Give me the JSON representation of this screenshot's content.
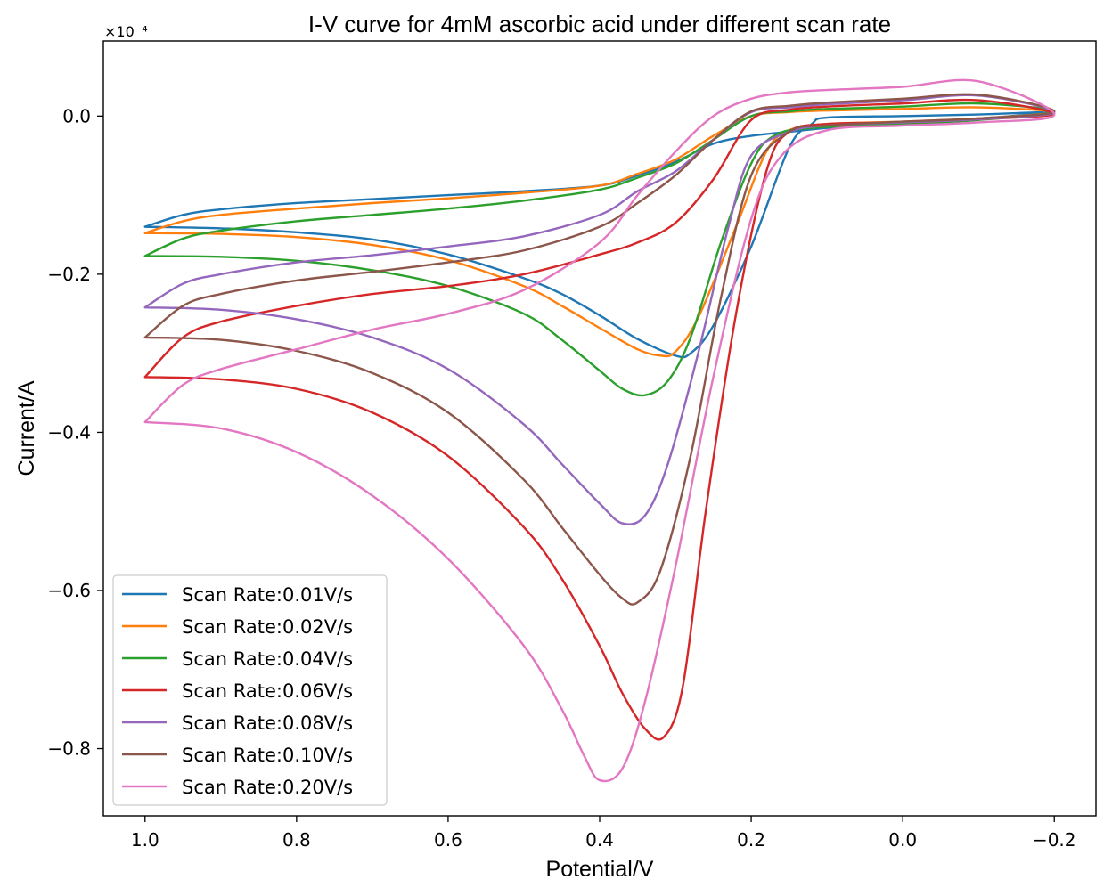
{
  "chart_data": {
    "type": "line",
    "title": "I-V curve for 4mM ascorbic acid under different scan rate",
    "xlabel": "Potential/V",
    "ylabel": "Current/A",
    "y_offset_label": "×10⁻⁴",
    "xlim": [
      1.055,
      -0.255
    ],
    "ylim": [
      -0.885,
      0.095
    ],
    "x_inverted": true,
    "xticks": [
      1.0,
      0.8,
      0.6,
      0.4,
      0.2,
      0.0,
      -0.2
    ],
    "xtick_labels": [
      "1.0",
      "0.8",
      "0.6",
      "0.4",
      "0.2",
      "0.0",
      "−0.2"
    ],
    "yticks": [
      0.0,
      -0.2,
      -0.4,
      -0.6,
      -0.8
    ],
    "ytick_labels": [
      "0.0",
      "−0.2",
      "−0.4",
      "−0.6",
      "−0.8"
    ],
    "grid": false,
    "legend_position": "lower-left",
    "series": [
      {
        "name": "Scan Rate:0.01V/s",
        "color": "#1f77b4",
        "forward": [
          [
            1.0,
            -0.14
          ],
          [
            0.9,
            -0.142
          ],
          [
            0.8,
            -0.147
          ],
          [
            0.7,
            -0.156
          ],
          [
            0.6,
            -0.175
          ],
          [
            0.5,
            -0.205
          ],
          [
            0.45,
            -0.225
          ],
          [
            0.4,
            -0.252
          ],
          [
            0.35,
            -0.282
          ],
          [
            0.3,
            -0.303
          ],
          [
            0.28,
            -0.3
          ],
          [
            0.25,
            -0.265
          ],
          [
            0.2,
            -0.165
          ],
          [
            0.15,
            -0.04
          ],
          [
            0.12,
            -0.01
          ],
          [
            0.1,
            -0.002
          ],
          [
            0.0,
            0.0
          ],
          [
            -0.1,
            0.002
          ],
          [
            -0.2,
            0.005
          ]
        ],
        "reverse": [
          [
            -0.2,
            0.005
          ],
          [
            -0.1,
            -0.003
          ],
          [
            0.0,
            -0.008
          ],
          [
            0.1,
            -0.015
          ],
          [
            0.15,
            -0.02
          ],
          [
            0.2,
            -0.025
          ],
          [
            0.25,
            -0.035
          ],
          [
            0.3,
            -0.058
          ],
          [
            0.35,
            -0.075
          ],
          [
            0.4,
            -0.088
          ],
          [
            0.5,
            -0.095
          ],
          [
            0.6,
            -0.1
          ],
          [
            0.7,
            -0.105
          ],
          [
            0.8,
            -0.11
          ],
          [
            0.9,
            -0.118
          ],
          [
            0.95,
            -0.125
          ],
          [
            1.0,
            -0.14
          ]
        ]
      },
      {
        "name": "Scan Rate:0.02V/s",
        "color": "#ff7f0e",
        "forward": [
          [
            1.0,
            -0.148
          ],
          [
            0.9,
            -0.149
          ],
          [
            0.8,
            -0.153
          ],
          [
            0.7,
            -0.163
          ],
          [
            0.6,
            -0.182
          ],
          [
            0.5,
            -0.215
          ],
          [
            0.45,
            -0.24
          ],
          [
            0.4,
            -0.268
          ],
          [
            0.35,
            -0.295
          ],
          [
            0.32,
            -0.303
          ],
          [
            0.3,
            -0.298
          ],
          [
            0.27,
            -0.255
          ],
          [
            0.22,
            -0.14
          ],
          [
            0.18,
            -0.045
          ],
          [
            0.15,
            -0.018
          ],
          [
            0.1,
            -0.01
          ],
          [
            0.0,
            -0.007
          ],
          [
            -0.1,
            -0.003
          ],
          [
            -0.2,
            0.005
          ]
        ],
        "reverse": [
          [
            -0.2,
            0.013
          ],
          [
            -0.1,
            0.011
          ],
          [
            0.0,
            0.009
          ],
          [
            0.1,
            0.007
          ],
          [
            0.15,
            0.005
          ],
          [
            0.2,
            0.0
          ],
          [
            0.25,
            -0.025
          ],
          [
            0.3,
            -0.055
          ],
          [
            0.35,
            -0.073
          ],
          [
            0.4,
            -0.088
          ],
          [
            0.5,
            -0.097
          ],
          [
            0.6,
            -0.104
          ],
          [
            0.7,
            -0.11
          ],
          [
            0.8,
            -0.117
          ],
          [
            0.9,
            -0.125
          ],
          [
            0.95,
            -0.133
          ],
          [
            1.0,
            -0.148
          ]
        ]
      },
      {
        "name": "Scan Rate:0.04V/s",
        "color": "#2ca02c",
        "forward": [
          [
            1.0,
            -0.177
          ],
          [
            0.9,
            -0.178
          ],
          [
            0.8,
            -0.183
          ],
          [
            0.7,
            -0.195
          ],
          [
            0.6,
            -0.215
          ],
          [
            0.5,
            -0.25
          ],
          [
            0.45,
            -0.283
          ],
          [
            0.4,
            -0.322
          ],
          [
            0.37,
            -0.345
          ],
          [
            0.34,
            -0.353
          ],
          [
            0.31,
            -0.335
          ],
          [
            0.28,
            -0.28
          ],
          [
            0.24,
            -0.16
          ],
          [
            0.2,
            -0.06
          ],
          [
            0.17,
            -0.025
          ],
          [
            0.12,
            -0.015
          ],
          [
            0.0,
            -0.01
          ],
          [
            -0.1,
            -0.005
          ],
          [
            -0.2,
            0.006
          ]
        ],
        "reverse": [
          [
            -0.2,
            0.02
          ],
          [
            -0.1,
            0.016
          ],
          [
            0.0,
            0.012
          ],
          [
            0.1,
            0.009
          ],
          [
            0.15,
            0.006
          ],
          [
            0.2,
            0.0
          ],
          [
            0.25,
            -0.03
          ],
          [
            0.3,
            -0.06
          ],
          [
            0.35,
            -0.078
          ],
          [
            0.4,
            -0.093
          ],
          [
            0.5,
            -0.107
          ],
          [
            0.6,
            -0.117
          ],
          [
            0.7,
            -0.125
          ],
          [
            0.8,
            -0.133
          ],
          [
            0.9,
            -0.145
          ],
          [
            0.95,
            -0.155
          ],
          [
            1.0,
            -0.177
          ]
        ]
      },
      {
        "name": "Scan Rate:0.06V/s",
        "color": "#d62728",
        "forward": [
          [
            1.0,
            -0.33
          ],
          [
            0.9,
            -0.333
          ],
          [
            0.8,
            -0.345
          ],
          [
            0.7,
            -0.375
          ],
          [
            0.6,
            -0.43
          ],
          [
            0.5,
            -0.52
          ],
          [
            0.45,
            -0.585
          ],
          [
            0.4,
            -0.67
          ],
          [
            0.37,
            -0.73
          ],
          [
            0.34,
            -0.775
          ],
          [
            0.315,
            -0.785
          ],
          [
            0.29,
            -0.72
          ],
          [
            0.26,
            -0.5
          ],
          [
            0.22,
            -0.25
          ],
          [
            0.18,
            -0.07
          ],
          [
            0.15,
            -0.02
          ],
          [
            0.1,
            -0.01
          ],
          [
            0.0,
            -0.008
          ],
          [
            -0.1,
            -0.004
          ],
          [
            -0.2,
            0.003
          ]
        ],
        "reverse": [
          [
            -0.2,
            0.025
          ],
          [
            -0.1,
            0.02
          ],
          [
            0.0,
            0.016
          ],
          [
            0.1,
            0.012
          ],
          [
            0.15,
            0.008
          ],
          [
            0.2,
            -0.005
          ],
          [
            0.25,
            -0.08
          ],
          [
            0.3,
            -0.135
          ],
          [
            0.35,
            -0.16
          ],
          [
            0.4,
            -0.175
          ],
          [
            0.5,
            -0.2
          ],
          [
            0.6,
            -0.215
          ],
          [
            0.7,
            -0.225
          ],
          [
            0.8,
            -0.24
          ],
          [
            0.9,
            -0.26
          ],
          [
            0.95,
            -0.28
          ],
          [
            1.0,
            -0.33
          ]
        ]
      },
      {
        "name": "Scan Rate:0.08V/s",
        "color": "#9467bd",
        "forward": [
          [
            1.0,
            -0.242
          ],
          [
            0.9,
            -0.245
          ],
          [
            0.8,
            -0.257
          ],
          [
            0.7,
            -0.28
          ],
          [
            0.6,
            -0.32
          ],
          [
            0.5,
            -0.39
          ],
          [
            0.45,
            -0.44
          ],
          [
            0.4,
            -0.49
          ],
          [
            0.37,
            -0.515
          ],
          [
            0.34,
            -0.505
          ],
          [
            0.31,
            -0.44
          ],
          [
            0.27,
            -0.3
          ],
          [
            0.23,
            -0.14
          ],
          [
            0.2,
            -0.05
          ],
          [
            0.15,
            -0.02
          ],
          [
            0.1,
            -0.012
          ],
          [
            0.0,
            -0.008
          ],
          [
            -0.1,
            -0.004
          ],
          [
            -0.2,
            0.005
          ]
        ],
        "reverse": [
          [
            -0.2,
            0.033
          ],
          [
            -0.1,
            0.026
          ],
          [
            0.0,
            0.02
          ],
          [
            0.1,
            0.015
          ],
          [
            0.15,
            0.011
          ],
          [
            0.2,
            0.005
          ],
          [
            0.25,
            -0.03
          ],
          [
            0.3,
            -0.07
          ],
          [
            0.35,
            -0.095
          ],
          [
            0.4,
            -0.125
          ],
          [
            0.5,
            -0.152
          ],
          [
            0.6,
            -0.165
          ],
          [
            0.7,
            -0.176
          ],
          [
            0.8,
            -0.185
          ],
          [
            0.9,
            -0.2
          ],
          [
            0.95,
            -0.212
          ],
          [
            1.0,
            -0.242
          ]
        ]
      },
      {
        "name": "Scan Rate:0.10V/s",
        "color": "#8c564b",
        "forward": [
          [
            1.0,
            -0.28
          ],
          [
            0.9,
            -0.283
          ],
          [
            0.8,
            -0.297
          ],
          [
            0.7,
            -0.325
          ],
          [
            0.6,
            -0.375
          ],
          [
            0.5,
            -0.46
          ],
          [
            0.45,
            -0.52
          ],
          [
            0.4,
            -0.58
          ],
          [
            0.37,
            -0.61
          ],
          [
            0.35,
            -0.615
          ],
          [
            0.32,
            -0.575
          ],
          [
            0.28,
            -0.43
          ],
          [
            0.24,
            -0.23
          ],
          [
            0.2,
            -0.075
          ],
          [
            0.15,
            -0.02
          ],
          [
            0.1,
            -0.012
          ],
          [
            0.0,
            -0.007
          ],
          [
            -0.1,
            -0.003
          ],
          [
            -0.2,
            0.006
          ]
        ],
        "reverse": [
          [
            -0.2,
            0.033
          ],
          [
            -0.1,
            0.027
          ],
          [
            0.0,
            0.022
          ],
          [
            0.1,
            0.017
          ],
          [
            0.15,
            0.013
          ],
          [
            0.2,
            0.006
          ],
          [
            0.25,
            -0.03
          ],
          [
            0.3,
            -0.075
          ],
          [
            0.35,
            -0.11
          ],
          [
            0.4,
            -0.14
          ],
          [
            0.5,
            -0.17
          ],
          [
            0.6,
            -0.185
          ],
          [
            0.7,
            -0.197
          ],
          [
            0.8,
            -0.208
          ],
          [
            0.9,
            -0.225
          ],
          [
            0.95,
            -0.24
          ],
          [
            1.0,
            -0.28
          ]
        ]
      },
      {
        "name": "Scan Rate:0.20V/s",
        "color": "#e377c2",
        "forward": [
          [
            1.0,
            -0.387
          ],
          [
            0.9,
            -0.395
          ],
          [
            0.8,
            -0.425
          ],
          [
            0.7,
            -0.48
          ],
          [
            0.6,
            -0.56
          ],
          [
            0.5,
            -0.67
          ],
          [
            0.45,
            -0.75
          ],
          [
            0.42,
            -0.81
          ],
          [
            0.4,
            -0.84
          ],
          [
            0.37,
            -0.825
          ],
          [
            0.34,
            -0.74
          ],
          [
            0.3,
            -0.57
          ],
          [
            0.25,
            -0.33
          ],
          [
            0.2,
            -0.13
          ],
          [
            0.16,
            -0.05
          ],
          [
            0.1,
            -0.018
          ],
          [
            0.0,
            -0.012
          ],
          [
            -0.1,
            -0.008
          ],
          [
            -0.2,
            0.002
          ]
        ],
        "reverse": [
          [
            -0.2,
            0.052
          ],
          [
            -0.1,
            0.044
          ],
          [
            0.0,
            0.037
          ],
          [
            0.1,
            0.033
          ],
          [
            0.15,
            0.03
          ],
          [
            0.2,
            0.022
          ],
          [
            0.25,
            0.0
          ],
          [
            0.3,
            -0.045
          ],
          [
            0.35,
            -0.1
          ],
          [
            0.4,
            -0.16
          ],
          [
            0.5,
            -0.22
          ],
          [
            0.6,
            -0.25
          ],
          [
            0.7,
            -0.27
          ],
          [
            0.8,
            -0.295
          ],
          [
            0.9,
            -0.32
          ],
          [
            0.95,
            -0.34
          ],
          [
            1.0,
            -0.387
          ]
        ]
      }
    ]
  }
}
